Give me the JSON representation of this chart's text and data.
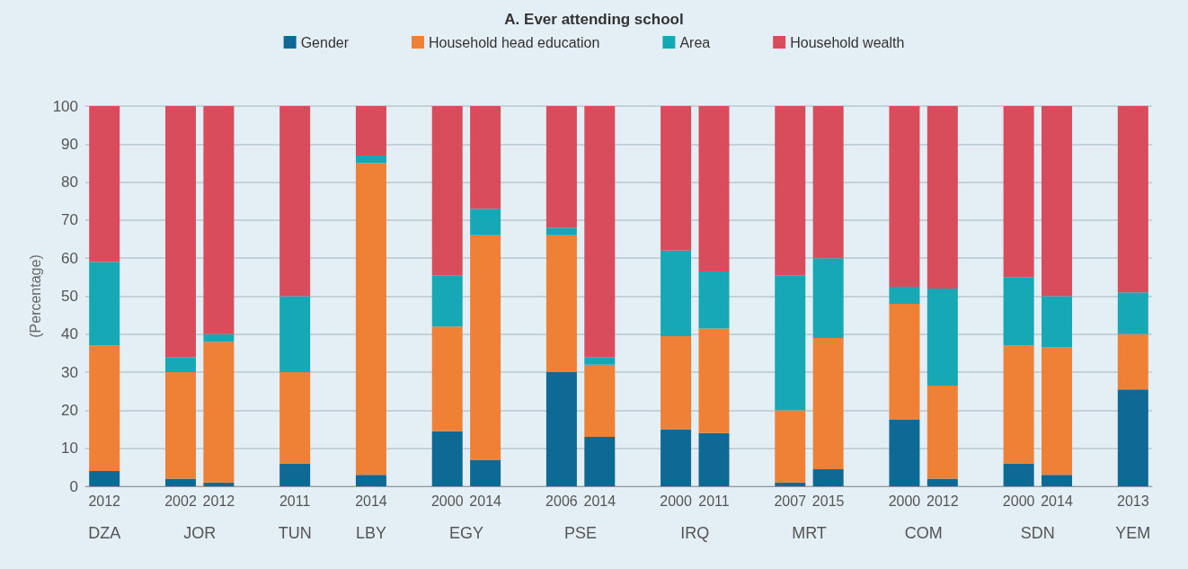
{
  "chart_data": {
    "type": "bar",
    "stacked": true,
    "title": "A. Ever attending school",
    "ylabel": "(Percentage)",
    "categories": [
      "2012",
      null,
      "2002",
      "2012",
      null,
      "2011",
      null,
      "2014",
      null,
      "2000",
      "2014",
      null,
      "2006",
      "2014",
      null,
      "2000",
      "2011",
      null,
      "2007",
      "2015",
      null,
      "2000",
      "2012",
      null,
      "2000",
      "2014",
      null,
      "2013"
    ],
    "annotations": [
      "DZA",
      "JOR",
      "TUN",
      "LBY",
      "EGY",
      "PSE",
      "IRQ",
      "MRT",
      "COM",
      "SDN",
      "YEM"
    ],
    "series": [
      {
        "name": "Gender",
        "color": "#0e6a94",
        "values": [
          4,
          null,
          2,
          1,
          null,
          6,
          null,
          3,
          null,
          14.5,
          7,
          null,
          30,
          13,
          null,
          15,
          14,
          null,
          1,
          4.5,
          null,
          17.5,
          2,
          null,
          6,
          3,
          null,
          25.5
        ]
      },
      {
        "name": "Household head education",
        "color": "#ee8136",
        "values": [
          33,
          null,
          28,
          37,
          null,
          24,
          null,
          82,
          null,
          27.5,
          59,
          null,
          36,
          19,
          null,
          24.5,
          27.5,
          null,
          19,
          34.5,
          null,
          30.5,
          24.5,
          null,
          31,
          33.5,
          null,
          14.5
        ]
      },
      {
        "name": "Area",
        "color": "#17a8b5",
        "values": [
          22,
          null,
          4,
          2,
          null,
          20,
          null,
          2,
          null,
          13.5,
          7,
          null,
          2,
          2,
          null,
          22.5,
          15,
          null,
          35.5,
          21,
          null,
          4.5,
          25.5,
          null,
          18,
          13.5,
          null,
          11
        ]
      },
      {
        "name": "Household wealth",
        "color": "#d94c5c",
        "values": [
          41,
          null,
          66,
          60,
          null,
          50,
          null,
          13,
          null,
          44.5,
          27,
          null,
          32,
          66,
          null,
          38,
          43.5,
          null,
          44.5,
          40,
          null,
          47.5,
          48,
          null,
          45,
          50,
          null,
          49
        ]
      }
    ],
    "ylim": [
      0,
      100
    ],
    "yticks": [
      0,
      10,
      20,
      30,
      40,
      50,
      60,
      70,
      80,
      90,
      100
    ],
    "grid": "y",
    "legend": "top"
  }
}
